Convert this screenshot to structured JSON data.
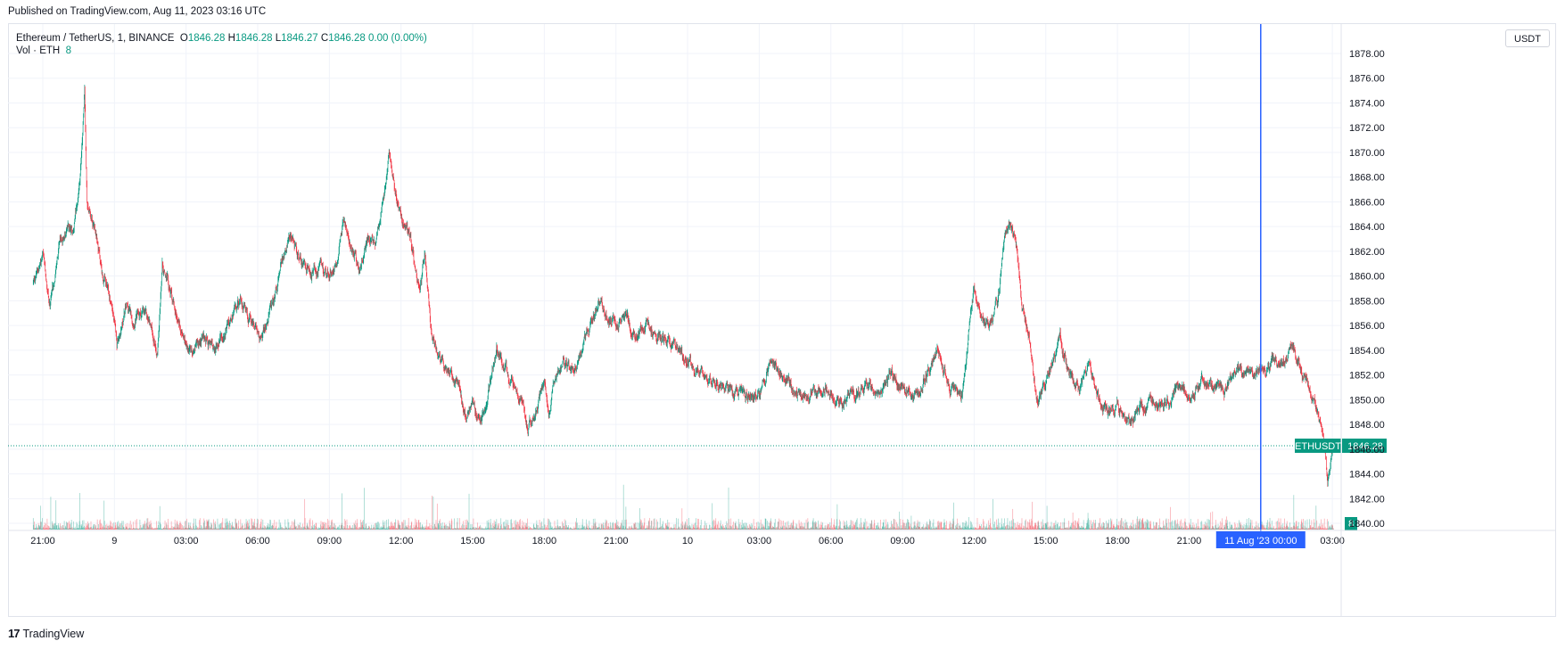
{
  "header": {
    "published": "Published on TradingView.com, Aug 11, 2023 03:16 UTC"
  },
  "legend": {
    "symbol": "Ethereum / TetherUS, 1, BINANCE",
    "o_label": "O",
    "o_value": "1846.28",
    "h_label": "H",
    "h_value": "1846.28",
    "l_label": "L",
    "l_value": "1846.27",
    "c_label": "C",
    "c_value": "1846.28",
    "change": "0.00 (0.00%)",
    "vol_label": "Vol · ETH",
    "vol_value": "8"
  },
  "currency_button": "USDT",
  "price_label": {
    "ticker": "ETHUSDT",
    "price": "1846.28",
    "color": "#089981"
  },
  "volume_label": "8",
  "crosshair_label": "11 Aug '23   00:00",
  "footer": {
    "logo_mark": "17",
    "brand": "TradingView"
  },
  "colors": {
    "up": "#089981",
    "down": "#f23645",
    "crosshair": "#2962ff",
    "grid": "#f0f3fa"
  },
  "chart_data": {
    "type": "candlestick",
    "title": "Ethereum / TetherUS, 1, BINANCE",
    "ylim": [
      1839.0,
      1879.0
    ],
    "y_ticks": [
      "1840.00",
      "1842.00",
      "1844.00",
      "1846.00",
      "1848.00",
      "1850.00",
      "1852.00",
      "1854.00",
      "1856.00",
      "1858.00",
      "1860.00",
      "1862.00",
      "1864.00",
      "1866.00",
      "1868.00",
      "1870.00",
      "1872.00",
      "1874.00",
      "1876.00",
      "1878.00"
    ],
    "y_tick_values": [
      1840,
      1842,
      1844,
      1846,
      1848,
      1850,
      1852,
      1854,
      1856,
      1858,
      1860,
      1862,
      1864,
      1866,
      1868,
      1870,
      1872,
      1874,
      1876,
      1878
    ],
    "x_ticks": [
      "21:00",
      "9",
      "03:00",
      "06:00",
      "09:00",
      "12:00",
      "15:00",
      "18:00",
      "21:00",
      "10",
      "03:00",
      "06:00",
      "09:00",
      "12:00",
      "15:00",
      "18:00",
      "21:00",
      "03:00"
    ],
    "x_tick_hours": [
      0,
      3,
      6,
      9,
      12,
      15,
      18,
      21,
      24,
      27,
      30,
      33,
      36,
      39,
      42,
      45,
      48,
      54
    ],
    "last_price": 1846.28,
    "crosshair_hour": 51,
    "price_path": [
      [
        -0.4,
        1859.5
      ],
      [
        0.0,
        1861.5
      ],
      [
        0.3,
        1857.5
      ],
      [
        0.7,
        1862.5
      ],
      [
        1.0,
        1864.0
      ],
      [
        1.3,
        1863.5
      ],
      [
        1.6,
        1869.0
      ],
      [
        1.75,
        1875.0
      ],
      [
        1.85,
        1866.0
      ],
      [
        2.2,
        1864.0
      ],
      [
        2.5,
        1860.0
      ],
      [
        2.9,
        1857.5
      ],
      [
        3.1,
        1854.5
      ],
      [
        3.5,
        1857.5
      ],
      [
        3.8,
        1856.5
      ],
      [
        4.2,
        1857.0
      ],
      [
        4.5,
        1856.0
      ],
      [
        4.8,
        1854.0
      ],
      [
        5.0,
        1861.0
      ],
      [
        5.3,
        1859.0
      ],
      [
        5.6,
        1857.0
      ],
      [
        6.0,
        1854.5
      ],
      [
        6.3,
        1854.0
      ],
      [
        6.7,
        1855.0
      ],
      [
        7.2,
        1854.0
      ],
      [
        7.8,
        1856.0
      ],
      [
        8.3,
        1858.0
      ],
      [
        8.8,
        1856.0
      ],
      [
        9.2,
        1855.0
      ],
      [
        9.5,
        1857.0
      ],
      [
        10.0,
        1861.0
      ],
      [
        10.4,
        1863.5
      ],
      [
        10.8,
        1861.0
      ],
      [
        11.2,
        1860.0
      ],
      [
        11.6,
        1860.5
      ],
      [
        12.0,
        1860.0
      ],
      [
        12.3,
        1861.5
      ],
      [
        12.6,
        1865.0
      ],
      [
        12.9,
        1862.0
      ],
      [
        13.3,
        1861.0
      ],
      [
        13.6,
        1863.0
      ],
      [
        13.9,
        1862.5
      ],
      [
        14.3,
        1867.0
      ],
      [
        14.5,
        1870.5
      ],
      [
        14.8,
        1866.0
      ],
      [
        15.1,
        1864.5
      ],
      [
        15.4,
        1863.0
      ],
      [
        15.8,
        1858.5
      ],
      [
        16.0,
        1862.0
      ],
      [
        16.3,
        1855.0
      ],
      [
        16.7,
        1853.0
      ],
      [
        17.0,
        1852.0
      ],
      [
        17.4,
        1851.0
      ],
      [
        17.7,
        1848.5
      ],
      [
        18.0,
        1850.0
      ],
      [
        18.3,
        1848.0
      ],
      [
        18.7,
        1851.0
      ],
      [
        19.0,
        1854.0
      ],
      [
        19.3,
        1853.0
      ],
      [
        19.6,
        1851.5
      ],
      [
        20.0,
        1850.0
      ],
      [
        20.3,
        1847.5
      ],
      [
        20.6,
        1849.0
      ],
      [
        21.0,
        1851.5
      ],
      [
        21.2,
        1849.0
      ],
      [
        21.4,
        1852.0
      ],
      [
        21.8,
        1853.0
      ],
      [
        22.2,
        1852.5
      ],
      [
        22.6,
        1854.0
      ],
      [
        23.0,
        1856.5
      ],
      [
        23.3,
        1858.0
      ],
      [
        23.7,
        1856.5
      ],
      [
        24.0,
        1856.0
      ],
      [
        24.4,
        1857.0
      ],
      [
        24.8,
        1855.0
      ],
      [
        25.2,
        1856.0
      ],
      [
        25.6,
        1855.5
      ],
      [
        26.0,
        1855.0
      ],
      [
        26.5,
        1854.0
      ],
      [
        27.0,
        1853.0
      ],
      [
        27.5,
        1852.0
      ],
      [
        28.0,
        1851.5
      ],
      [
        28.5,
        1851.0
      ],
      [
        29.0,
        1850.5
      ],
      [
        29.5,
        1850.0
      ],
      [
        30.0,
        1850.5
      ],
      [
        30.5,
        1853.0
      ],
      [
        31.0,
        1852.0
      ],
      [
        31.5,
        1850.5
      ],
      [
        32.0,
        1850.0
      ],
      [
        32.5,
        1851.0
      ],
      [
        33.0,
        1850.5
      ],
      [
        33.5,
        1850.0
      ],
      [
        34.0,
        1850.5
      ],
      [
        34.5,
        1851.0
      ],
      [
        35.0,
        1850.5
      ],
      [
        35.5,
        1852.0
      ],
      [
        36.0,
        1851.0
      ],
      [
        36.5,
        1850.5
      ],
      [
        37.0,
        1852.0
      ],
      [
        37.5,
        1854.0
      ],
      [
        38.0,
        1851.0
      ],
      [
        38.5,
        1850.5
      ],
      [
        39.0,
        1859.0
      ],
      [
        39.3,
        1857.0
      ],
      [
        39.6,
        1855.5
      ],
      [
        40.0,
        1858.0
      ],
      [
        40.2,
        1862.0
      ],
      [
        40.5,
        1864.5
      ],
      [
        40.8,
        1862.0
      ],
      [
        41.0,
        1858.0
      ],
      [
        41.3,
        1855.0
      ],
      [
        41.6,
        1850.0
      ],
      [
        42.0,
        1851.5
      ],
      [
        42.3,
        1853.0
      ],
      [
        42.6,
        1855.0
      ],
      [
        43.0,
        1852.0
      ],
      [
        43.4,
        1851.0
      ],
      [
        43.8,
        1853.0
      ],
      [
        44.2,
        1850.0
      ],
      [
        44.6,
        1849.0
      ],
      [
        45.0,
        1849.5
      ],
      [
        45.5,
        1848.5
      ],
      [
        46.0,
        1849.5
      ],
      [
        46.5,
        1850.0
      ],
      [
        47.0,
        1849.5
      ],
      [
        47.5,
        1851.0
      ],
      [
        48.0,
        1850.5
      ],
      [
        48.5,
        1851.5
      ],
      [
        49.0,
        1851.0
      ],
      [
        49.5,
        1850.5
      ],
      [
        50.0,
        1852.5
      ],
      [
        50.5,
        1852.0
      ],
      [
        51.0,
        1852.0
      ],
      [
        51.5,
        1853.0
      ],
      [
        52.0,
        1853.0
      ],
      [
        52.3,
        1854.5
      ],
      [
        52.6,
        1853.0
      ],
      [
        53.0,
        1851.0
      ],
      [
        53.3,
        1849.5
      ],
      [
        53.6,
        1847.0
      ],
      [
        53.8,
        1843.5
      ],
      [
        53.95,
        1845.5
      ],
      [
        54.05,
        1846.28
      ]
    ]
  }
}
